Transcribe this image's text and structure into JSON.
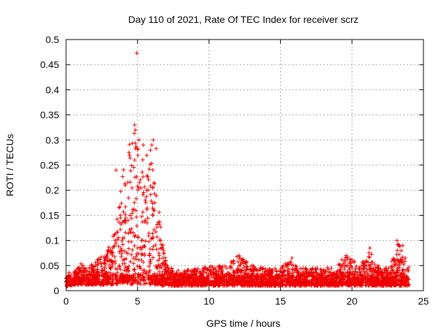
{
  "chart_data": {
    "type": "scatter",
    "title": "Day 110 of 2021, Rate Of TEC Index for receiver scrz",
    "xlabel": "GPS time / hours",
    "ylabel": "ROTI / TECUs",
    "xlim": [
      0,
      25
    ],
    "ylim": [
      0,
      0.5
    ],
    "xticks": [
      0,
      5,
      10,
      15,
      20,
      25
    ],
    "yticks": [
      0,
      0.05,
      0.1,
      0.15,
      0.2,
      0.25,
      0.3,
      0.35,
      0.4,
      0.45,
      0.5
    ],
    "xtick_labels": [
      "0",
      "5",
      "10",
      "15",
      "20",
      "25"
    ],
    "ytick_labels": [
      "0",
      "0.05",
      "0.1",
      "0.15",
      "0.2",
      "0.25",
      "0.3",
      "0.35",
      "0.4",
      "0.45",
      "0.5"
    ],
    "grid": true,
    "marker": "+",
    "series": [
      {
        "name": "ROTI",
        "color": "#ee0000",
        "envelope": {
          "x": [
            0,
            0.5,
            1,
            1.5,
            2,
            2.5,
            3,
            3.25,
            3.5,
            3.75,
            4,
            4.25,
            4.5,
            4.75,
            5,
            5.25,
            5.5,
            5.75,
            6,
            6.25,
            6.5,
            6.75,
            7,
            7.5,
            8,
            9,
            10,
            11,
            12,
            13,
            14,
            15,
            15.75,
            16,
            17,
            18,
            19,
            19.5,
            20,
            20.5,
            21,
            21.25,
            21.5,
            22,
            22.5,
            23,
            23.25,
            23.5,
            24
          ],
          "upper": [
            0.045,
            0.04,
            0.055,
            0.045,
            0.06,
            0.07,
            0.09,
            0.1,
            0.15,
            0.2,
            0.24,
            0.27,
            0.3,
            0.32,
            0.3,
            0.26,
            0.27,
            0.3,
            0.28,
            0.2,
            0.16,
            0.1,
            0.055,
            0.045,
            0.04,
            0.045,
            0.05,
            0.05,
            0.07,
            0.05,
            0.045,
            0.045,
            0.065,
            0.05,
            0.045,
            0.045,
            0.05,
            0.07,
            0.065,
            0.05,
            0.065,
            0.085,
            0.06,
            0.045,
            0.05,
            0.07,
            0.1,
            0.085,
            0.05
          ],
          "lower": [
            0.008,
            0.012,
            0.012,
            0.012,
            0.012,
            0.012,
            0.012,
            0.012,
            0.015,
            0.018,
            0.02,
            0.02,
            0.02,
            0.02,
            0.02,
            0.02,
            0.02,
            0.02,
            0.015,
            0.012,
            0.012,
            0.01,
            0.01,
            0.01,
            0.01,
            0.01,
            0.01,
            0.01,
            0.01,
            0.01,
            0.01,
            0.01,
            0.01,
            0.01,
            0.01,
            0.01,
            0.01,
            0.01,
            0.01,
            0.01,
            0.01,
            0.01,
            0.01,
            0.01,
            0.01,
            0.01,
            0.01,
            0.01,
            0.01
          ]
        },
        "notable_points": [
          [
            4.95,
            0.473
          ],
          [
            4.8,
            0.33
          ],
          [
            4.85,
            0.32
          ],
          [
            5.1,
            0.3
          ],
          [
            6.1,
            0.3
          ],
          [
            5.4,
            0.29
          ],
          [
            6.0,
            0.29
          ],
          [
            6.3,
            0.283
          ],
          [
            4.4,
            0.275
          ],
          [
            3.5,
            0.24
          ],
          [
            23.15,
            0.1
          ],
          [
            21.25,
            0.085
          ],
          [
            23.55,
            0.09
          ],
          [
            19.6,
            0.07
          ],
          [
            12.1,
            0.07
          ],
          [
            15.8,
            0.065
          ]
        ]
      }
    ]
  }
}
